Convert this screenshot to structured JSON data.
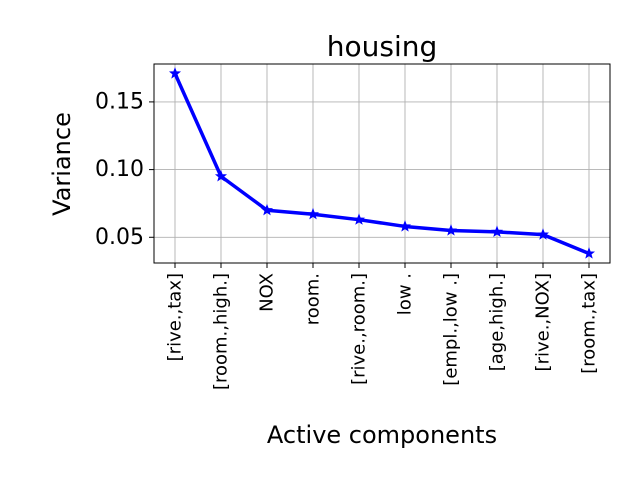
{
  "chart_data": {
    "type": "line",
    "title": "housing",
    "xlabel": "Active components",
    "ylabel": "Variance",
    "categories": [
      "[rive.,tax]",
      "[room.,high.]",
      "NOX",
      "room.",
      "[rive.,room.]",
      "low .",
      "[empl.,low .]",
      "[age,high.]",
      "[rive.,NOX]",
      "[room.,tax]"
    ],
    "series": [
      {
        "values": [
          0.171,
          0.095,
          0.07,
          0.067,
          0.063,
          0.058,
          0.055,
          0.054,
          0.052,
          0.038
        ],
        "color": "#0000ff",
        "marker": "star"
      }
    ],
    "ylim": [
      0.031,
      0.178
    ],
    "yticks": [
      0.05,
      0.1,
      0.15
    ],
    "ytick_labels": [
      "0.05",
      "0.10",
      "0.15"
    ],
    "grid": true
  }
}
